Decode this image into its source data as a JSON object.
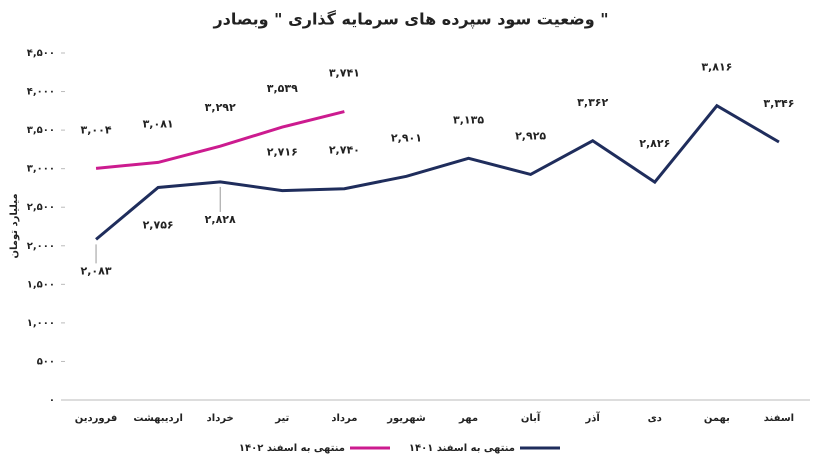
{
  "chart_data": {
    "type": "line",
    "title": "وضعیت سود سپرده های سرمایه گذاری \" وبصادر \"",
    "y_label": "میلیارد تومان",
    "categories": [
      "فروردین",
      "اردیبهشت",
      "خرداد",
      "تیر",
      "مرداد",
      "شهریور",
      "مهر",
      "آبان",
      "آذر",
      "دی",
      "بهمن",
      "اسفند"
    ],
    "series": [
      {
        "name": "منتهی به اسفند ۱۴۰۱",
        "color": "#1f2d5c",
        "values": [
          2083,
          2756,
          2828,
          2716,
          2740,
          2901,
          3135,
          2925,
          3362,
          2826,
          3816,
          3346
        ],
        "value_labels": [
          "۲,۰۸۳",
          "۲,۷۵۶",
          "۲,۸۲۸",
          "۲,۷۱۶",
          "۲,۷۴۰",
          "۲,۹۰۱",
          "۳,۱۳۵",
          "۲,۹۲۵",
          "۳,۳۶۲",
          "۲,۸۲۶",
          "۳,۸۱۶",
          "۳,۳۴۶"
        ]
      },
      {
        "name": "منتهی به اسفند ۱۴۰۲",
        "color": "#cc1b8f",
        "values": [
          3004,
          3081,
          3292,
          3539,
          3741,
          null,
          null,
          null,
          null,
          null,
          null,
          null
        ],
        "value_labels": [
          "۳,۰۰۴",
          "۳,۰۸۱",
          "۳,۲۹۲",
          "۳,۵۳۹",
          "۳,۷۴۱",
          null,
          null,
          null,
          null,
          null,
          null,
          null
        ]
      }
    ],
    "ylim": [
      0,
      4500
    ],
    "yticks": [
      {
        "value": 0,
        "label": "۰"
      },
      {
        "value": 500,
        "label": "۵۰۰"
      },
      {
        "value": 1000,
        "label": "۱,۰۰۰"
      },
      {
        "value": 1500,
        "label": "۱,۵۰۰"
      },
      {
        "value": 2000,
        "label": "۲,۰۰۰"
      },
      {
        "value": 2500,
        "label": "۲,۵۰۰"
      },
      {
        "value": 3000,
        "label": "۳,۰۰۰"
      },
      {
        "value": 3500,
        "label": "۳,۵۰۰"
      },
      {
        "value": 4000,
        "label": "۴,۰۰۰"
      },
      {
        "value": 4500,
        "label": "۴,۵۰۰"
      }
    ],
    "grid": false,
    "legend": "bottom"
  }
}
